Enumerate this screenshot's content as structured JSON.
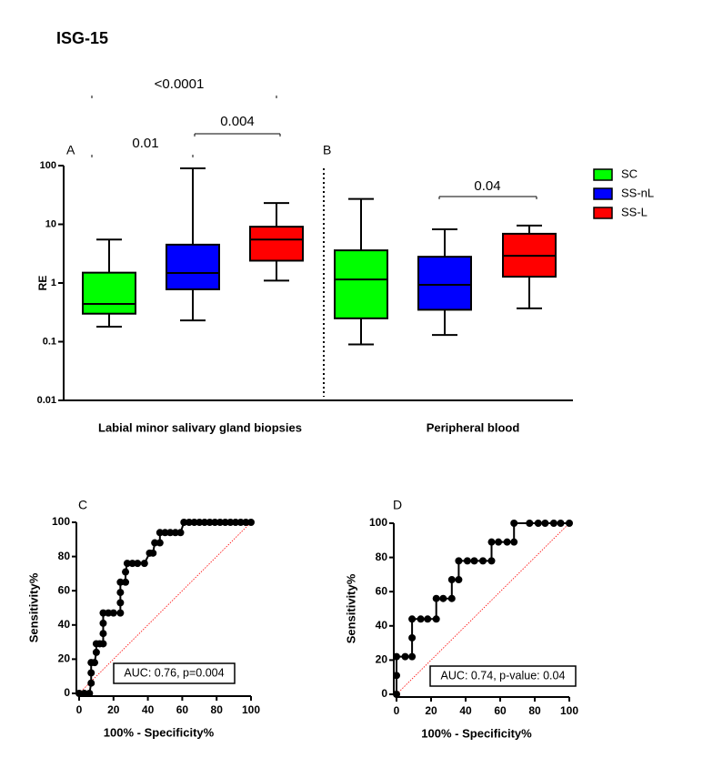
{
  "chart_data": [
    {
      "type": "box",
      "title": "ISG-15",
      "panel_labels": [
        "A",
        "B"
      ],
      "categories": [
        "Labial minor salivary gland biopsies",
        "Peripheral blood"
      ],
      "y_label": "RE",
      "log_scale": true,
      "ylim": [
        0.01,
        100
      ],
      "yticks": [
        0.01,
        0.1,
        1,
        10,
        100
      ],
      "legend": "right",
      "series": [
        {
          "name": "SC",
          "color": "#00ff00",
          "values": [
            {
              "min": 0.18,
              "q1": 0.3,
              "median": 0.44,
              "q3": 1.5,
              "max": 5.5
            },
            {
              "min": 0.09,
              "q1": 0.25,
              "median": 1.15,
              "q3": 3.6,
              "max": 27
            }
          ]
        },
        {
          "name": "SS-nL",
          "color": "#0000ff",
          "values": [
            {
              "min": 0.23,
              "q1": 0.78,
              "median": 1.48,
              "q3": 4.5,
              "max": 90
            },
            {
              "min": 0.13,
              "q1": 0.35,
              "median": 0.93,
              "q3": 2.8,
              "max": 8.2
            }
          ]
        },
        {
          "name": "SS-L",
          "color": "#ff0000",
          "values": [
            {
              "min": 1.1,
              "q1": 2.4,
              "median": 5.5,
              "q3": 9.1,
              "max": 23
            },
            {
              "min": 0.37,
              "q1": 1.28,
              "median": 2.9,
              "q3": 6.9,
              "max": 9.5
            }
          ]
        }
      ],
      "annotations": [
        "<0.0001",
        "0.01",
        "0.004",
        "0.04"
      ]
    },
    {
      "type": "line",
      "panel_label": "C",
      "x_label": "100% - Specificity%",
      "y_label": "Sensitivity%",
      "xlim": [
        0,
        100
      ],
      "ylim": [
        0,
        100
      ],
      "xticks": [
        0,
        20,
        40,
        60,
        80,
        100
      ],
      "yticks": [
        0,
        20,
        40,
        60,
        80,
        100
      ],
      "color": "#000000",
      "x": [
        0,
        3,
        6,
        7,
        7,
        7,
        9,
        10,
        10,
        12,
        14,
        14,
        14,
        14,
        17,
        20,
        24,
        24,
        24,
        24,
        27,
        27,
        28,
        31,
        34,
        38,
        41,
        43,
        44,
        47,
        47,
        50,
        53,
        56,
        59,
        61,
        64,
        67,
        70,
        73,
        76,
        79,
        82,
        85,
        88,
        91,
        94,
        97,
        100
      ],
      "values": [
        0,
        0,
        0,
        6,
        12,
        18,
        18,
        24,
        29,
        29,
        29,
        35,
        41,
        47,
        47,
        47,
        47,
        53,
        59,
        65,
        65,
        71,
        76,
        76,
        76,
        76,
        82,
        82,
        88,
        88,
        94,
        94,
        94,
        94,
        94,
        100,
        100,
        100,
        100,
        100,
        100,
        100,
        100,
        100,
        100,
        100,
        100,
        100,
        100
      ],
      "annotation": "AUC: 0.76, p=0.004"
    },
    {
      "type": "line",
      "panel_label": "D",
      "x_label": "100% - Specificity%",
      "y_label": "Sensitivity%",
      "xlim": [
        0,
        100
      ],
      "ylim": [
        0,
        100
      ],
      "xticks": [
        0,
        20,
        40,
        60,
        80,
        100
      ],
      "yticks": [
        0,
        20,
        40,
        60,
        80,
        100
      ],
      "color": "#000000",
      "x": [
        0,
        0,
        0,
        5,
        9,
        9,
        9,
        14,
        18,
        23,
        23,
        27,
        32,
        32,
        36,
        36,
        41,
        45,
        50,
        55,
        55,
        59,
        64,
        68,
        68,
        77,
        82,
        86,
        91,
        95,
        100
      ],
      "values": [
        0,
        11,
        22,
        22,
        22,
        33,
        44,
        44,
        44,
        44,
        56,
        56,
        56,
        67,
        67,
        78,
        78,
        78,
        78,
        78,
        89,
        89,
        89,
        89,
        100,
        100,
        100,
        100,
        100,
        100,
        100
      ],
      "annotation": "AUC: 0.74, p-value: 0.04"
    }
  ]
}
